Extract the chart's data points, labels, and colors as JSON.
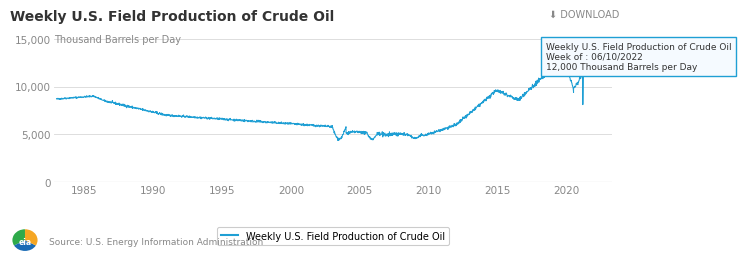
{
  "title": "Weekly U.S. Field Production of Crude Oil",
  "ylabel": "Thousand Barrels per Day",
  "download_text": "⬇ DOWNLOAD",
  "source_text": "Source: U.S. Energy Information Administration",
  "legend_label": "Weekly U.S. Field Production of Crude Oil",
  "tooltip_title": "Weekly U.S. Field Production of Crude Oil",
  "tooltip_week": "Week of : 06/10/2022",
  "tooltip_value": "12,000 Thousand Barrels per Day",
  "line_color": "#1f9fd4",
  "tooltip_bg": "#f5faff",
  "tooltip_border": "#1f9fd4",
  "ylim": [
    0,
    15000
  ],
  "yticks": [
    0,
    5000,
    10000,
    15000
  ],
  "ytick_labels": [
    "0",
    "5,000",
    "10,000",
    "15,000"
  ],
  "xlim_start": 1982.8,
  "xlim_end": 2023.3,
  "xticks": [
    1985,
    1990,
    1995,
    2000,
    2005,
    2010,
    2015,
    2020
  ],
  "background_color": "#ffffff",
  "grid_color": "#d8d8d8",
  "title_fontsize": 10,
  "tick_fontsize": 7.5
}
